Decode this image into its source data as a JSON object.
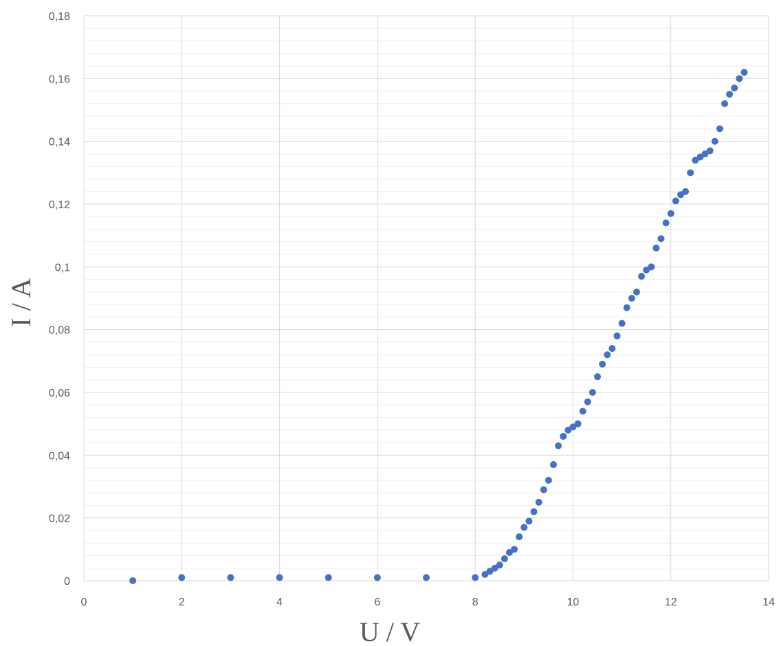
{
  "chart_data": {
    "type": "scatter",
    "title": "",
    "xlabel": "U / V",
    "ylabel": "I / A",
    "xlim": [
      0,
      14
    ],
    "ylim": [
      0,
      0.18
    ],
    "x_ticks": [
      0,
      2,
      4,
      6,
      8,
      10,
      12,
      14
    ],
    "x_tick_labels": [
      "0",
      "2",
      "4",
      "6",
      "8",
      "10",
      "12",
      "14"
    ],
    "y_ticks": [
      0,
      0.02,
      0.04,
      0.06,
      0.08,
      0.1,
      0.12,
      0.14,
      0.16,
      0.18
    ],
    "y_tick_labels": [
      "0",
      "0,02",
      "0,04",
      "0,06",
      "0,08",
      "0,1",
      "0,12",
      "0,14",
      "0,16",
      "0,18"
    ],
    "grid": {
      "major": true,
      "minor_horizontal": true
    },
    "legend": "none",
    "colors": {
      "marker": "#4472C4",
      "major_grid": "#d9d9d9",
      "minor_grid": "#efefef",
      "text": "#595959"
    },
    "series": [
      {
        "points": [
          [
            1,
            0
          ],
          [
            2,
            0.001
          ],
          [
            3,
            0.001
          ],
          [
            4,
            0.001
          ],
          [
            5,
            0.001
          ],
          [
            6,
            0.001
          ],
          [
            7,
            0.001
          ],
          [
            8,
            0.001
          ],
          [
            8.2,
            0.002
          ],
          [
            8.3,
            0.003
          ],
          [
            8.4,
            0.004
          ],
          [
            8.5,
            0.005
          ],
          [
            8.6,
            0.007
          ],
          [
            8.7,
            0.009
          ],
          [
            8.8,
            0.01
          ],
          [
            8.9,
            0.014
          ],
          [
            9.0,
            0.017
          ],
          [
            9.1,
            0.019
          ],
          [
            9.2,
            0.022
          ],
          [
            9.3,
            0.025
          ],
          [
            9.4,
            0.029
          ],
          [
            9.5,
            0.032
          ],
          [
            9.6,
            0.037
          ],
          [
            9.7,
            0.043
          ],
          [
            9.8,
            0.046
          ],
          [
            9.9,
            0.048
          ],
          [
            10.0,
            0.049
          ],
          [
            10.1,
            0.05
          ],
          [
            10.2,
            0.054
          ],
          [
            10.3,
            0.057
          ],
          [
            10.4,
            0.06
          ],
          [
            10.5,
            0.065
          ],
          [
            10.6,
            0.069
          ],
          [
            10.7,
            0.072
          ],
          [
            10.8,
            0.074
          ],
          [
            10.9,
            0.078
          ],
          [
            11.0,
            0.082
          ],
          [
            11.1,
            0.087
          ],
          [
            11.2,
            0.09
          ],
          [
            11.3,
            0.092
          ],
          [
            11.4,
            0.097
          ],
          [
            11.5,
            0.099
          ],
          [
            11.6,
            0.1
          ],
          [
            11.7,
            0.106
          ],
          [
            11.8,
            0.109
          ],
          [
            11.9,
            0.114
          ],
          [
            12.0,
            0.117
          ],
          [
            12.1,
            0.121
          ],
          [
            12.2,
            0.123
          ],
          [
            12.3,
            0.124
          ],
          [
            12.4,
            0.13
          ],
          [
            12.5,
            0.134
          ],
          [
            12.6,
            0.135
          ],
          [
            12.7,
            0.136
          ],
          [
            12.8,
            0.137
          ],
          [
            12.9,
            0.14
          ],
          [
            13.0,
            0.144
          ],
          [
            13.1,
            0.152
          ],
          [
            13.2,
            0.155
          ],
          [
            13.3,
            0.157
          ],
          [
            13.4,
            0.16
          ],
          [
            13.5,
            0.162
          ]
        ]
      }
    ]
  }
}
